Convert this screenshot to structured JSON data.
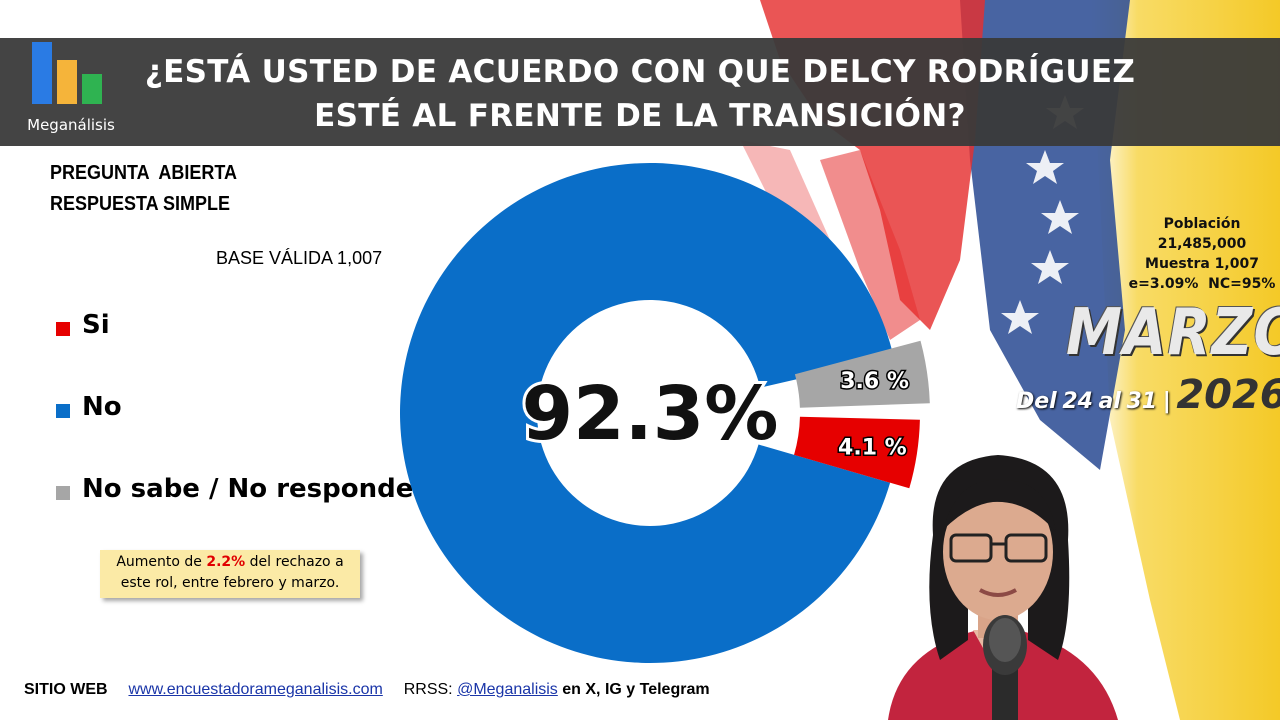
{
  "brand": {
    "name": "Meganálisis"
  },
  "header": {
    "title_line1": "¿ESTÁ USTED DE ACUERDO CON QUE DELCY RODRÍGUEZ",
    "title_line2": "ESTÉ AL FRENTE DE LA TRANSICIÓN?"
  },
  "question_type": {
    "line1": "PREGUNTA  ABIERTA",
    "line2": "RESPUESTA SIMPLE"
  },
  "base_label": "BASE VÁLIDA 1,007",
  "note": {
    "prefix": "Aumento de ",
    "highlight": "2.2%",
    "line1_rest": " del rechazo a",
    "line2": "este rol, entre febrero y marzo."
  },
  "stats": {
    "poblacion_label": "Población",
    "poblacion_value": "21,485,000",
    "muestra": "Muestra 1,007",
    "error": "e=3.09%  NC=95%"
  },
  "period": {
    "month": "MARZO",
    "dates_prefix": "Del",
    "day_start": "24",
    "dates_mid": "al",
    "day_end": "31",
    "separator": "|",
    "year": "2026"
  },
  "footer": {
    "web_label": "SITIO WEB",
    "web_url": "www.encuestadorameganalisis.com",
    "rrss_label": "RRSS:",
    "handle": "@Meganalisis",
    "networks": "en X, IG y Telegram"
  },
  "colors": {
    "si": "#e60000",
    "no": "#0a6ec8",
    "ns": "#a6a6a6",
    "header_bg": "#3a3a3a"
  },
  "chart_data": {
    "type": "pie",
    "title": "¿ESTÁ USTED DE ACUERDO CON QUE DELCY RODRÍGUEZ ESTÉ AL FRENTE DE LA TRANSICIÓN?",
    "categories": [
      "Si",
      "No",
      "No sabe / No responde"
    ],
    "values": [
      4.1,
      92.3,
      3.6
    ],
    "labels": [
      "4.1 %",
      "92.3%",
      "3.6 %"
    ],
    "colors": [
      "#e60000",
      "#0a6ec8",
      "#a6a6a6"
    ],
    "donut": true,
    "legend_position": "left"
  }
}
